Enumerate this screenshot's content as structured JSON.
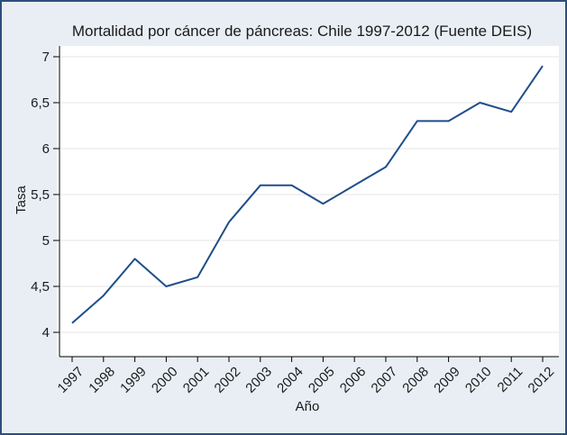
{
  "chart_data": {
    "type": "line",
    "title": "Mortalidad por cáncer de páncreas: Chile 1997-2012 (Fuente DEIS)",
    "xlabel": "Año",
    "ylabel": "Tasa",
    "x": [
      1997,
      1998,
      1999,
      2000,
      2001,
      2002,
      2003,
      2004,
      2005,
      2006,
      2007,
      2008,
      2009,
      2010,
      2011,
      2012
    ],
    "x_tick_labels": [
      "1997",
      "1998",
      "1999",
      "2000",
      "2001",
      "2002",
      "2003",
      "2004",
      "2005",
      "2006",
      "2007",
      "2008",
      "2009",
      "2010",
      "2011",
      "2012"
    ],
    "series": [
      {
        "values": [
          4.1,
          4.4,
          4.8,
          4.5,
          4.6,
          5.2,
          5.6,
          5.6,
          5.4,
          5.6,
          5.8,
          6.3,
          6.3,
          6.5,
          6.4,
          6.9
        ]
      }
    ],
    "y_ticks": [
      4,
      4.5,
      5,
      5.5,
      6,
      6.5,
      7
    ],
    "y_tick_labels": [
      "4",
      "4,5",
      "5",
      "5,5",
      "6",
      "6,5",
      "7"
    ],
    "ylim": [
      4,
      7
    ],
    "xlim": [
      1997,
      2012
    ],
    "grid": "y",
    "legend": "none",
    "colors": {
      "line": "#1f4e8c",
      "background": "#e8eef4",
      "plot_background": "#ffffff",
      "grid": "#e6e6e6",
      "frame": "#2b4f7e"
    }
  }
}
